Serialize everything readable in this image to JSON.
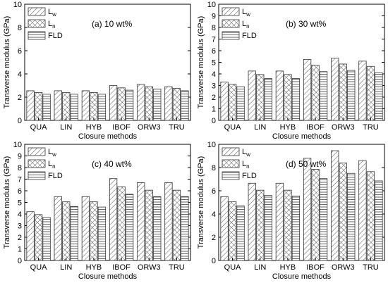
{
  "figure": {
    "legend": [
      "Lw",
      "Ln",
      "FLD"
    ],
    "ylabel": "Transverse modulus (GPa)",
    "xlabel": "Closure methods"
  },
  "chart_data": [
    {
      "type": "bar",
      "annotation": "(a) 10 wt%",
      "categories": [
        "QUA",
        "LIN",
        "HYB",
        "IBOF",
        "ORW3",
        "TRU"
      ],
      "series": [
        {
          "name": "Lw",
          "values": [
            2.55,
            2.55,
            2.55,
            3.0,
            3.1,
            2.9
          ]
        },
        {
          "name": "Ln",
          "values": [
            2.4,
            2.4,
            2.4,
            2.8,
            2.9,
            2.75
          ]
        },
        {
          "name": "FLD",
          "values": [
            2.25,
            2.25,
            2.25,
            2.6,
            2.7,
            2.55
          ]
        }
      ],
      "ylim": [
        0,
        10
      ],
      "yticks": [
        0,
        2,
        4,
        6,
        8,
        10
      ],
      "xlabel": "Closure methods",
      "ylabel": "Transverse modulus (GPa)"
    },
    {
      "type": "bar",
      "annotation": "(b) 30 wt%",
      "categories": [
        "QUA",
        "LIN",
        "HYB",
        "IBOF",
        "ORW3",
        "TRU"
      ],
      "series": [
        {
          "name": "Lw",
          "values": [
            3.3,
            4.25,
            4.25,
            5.25,
            5.35,
            5.1
          ]
        },
        {
          "name": "Ln",
          "values": [
            3.1,
            3.95,
            3.95,
            4.75,
            4.85,
            4.65
          ]
        },
        {
          "name": "FLD",
          "values": [
            2.9,
            3.6,
            3.6,
            4.2,
            4.3,
            4.1
          ]
        }
      ],
      "ylim": [
        0,
        10
      ],
      "yticks": [
        0,
        1,
        2,
        3,
        4,
        5,
        6,
        7,
        8,
        9,
        10
      ],
      "xlabel": "Closure methods",
      "ylabel": "Transverse modulus (GPa)"
    },
    {
      "type": "bar",
      "annotation": "(c) 40 wt%",
      "categories": [
        "QUA",
        "LIN",
        "HYB",
        "IBOF",
        "ORW3",
        "TRU"
      ],
      "series": [
        {
          "name": "Lw",
          "values": [
            4.2,
            5.5,
            5.5,
            7.05,
            6.7,
            6.7
          ]
        },
        {
          "name": "Ln",
          "values": [
            3.95,
            5.05,
            5.05,
            6.35,
            6.05,
            6.05
          ]
        },
        {
          "name": "FLD",
          "values": [
            3.7,
            4.65,
            4.6,
            5.7,
            5.5,
            5.5
          ]
        }
      ],
      "ylim": [
        0,
        10
      ],
      "yticks": [
        0,
        1,
        2,
        3,
        4,
        5,
        6,
        7,
        8,
        9,
        10
      ],
      "xlabel": "Closure methods",
      "ylabel": "Transverse modulus (GPa)"
    },
    {
      "type": "bar",
      "annotation": "(d) 50 wt%",
      "categories": [
        "QUA",
        "LIN",
        "HYB",
        "IBOF",
        "ORW3",
        "TRU"
      ],
      "series": [
        {
          "name": "Lw",
          "values": [
            5.5,
            6.65,
            6.65,
            8.8,
            9.45,
            8.6
          ]
        },
        {
          "name": "Ln",
          "values": [
            5.05,
            6.05,
            6.05,
            7.85,
            8.4,
            7.65
          ]
        },
        {
          "name": "FLD",
          "values": [
            4.7,
            5.6,
            5.55,
            7.05,
            7.5,
            6.85
          ]
        }
      ],
      "ylim": [
        0,
        10
      ],
      "yticks": [
        0,
        2,
        4,
        6,
        8,
        10
      ],
      "xlabel": "Closure methods",
      "ylabel": "Transverse modulus (GPa)"
    }
  ]
}
